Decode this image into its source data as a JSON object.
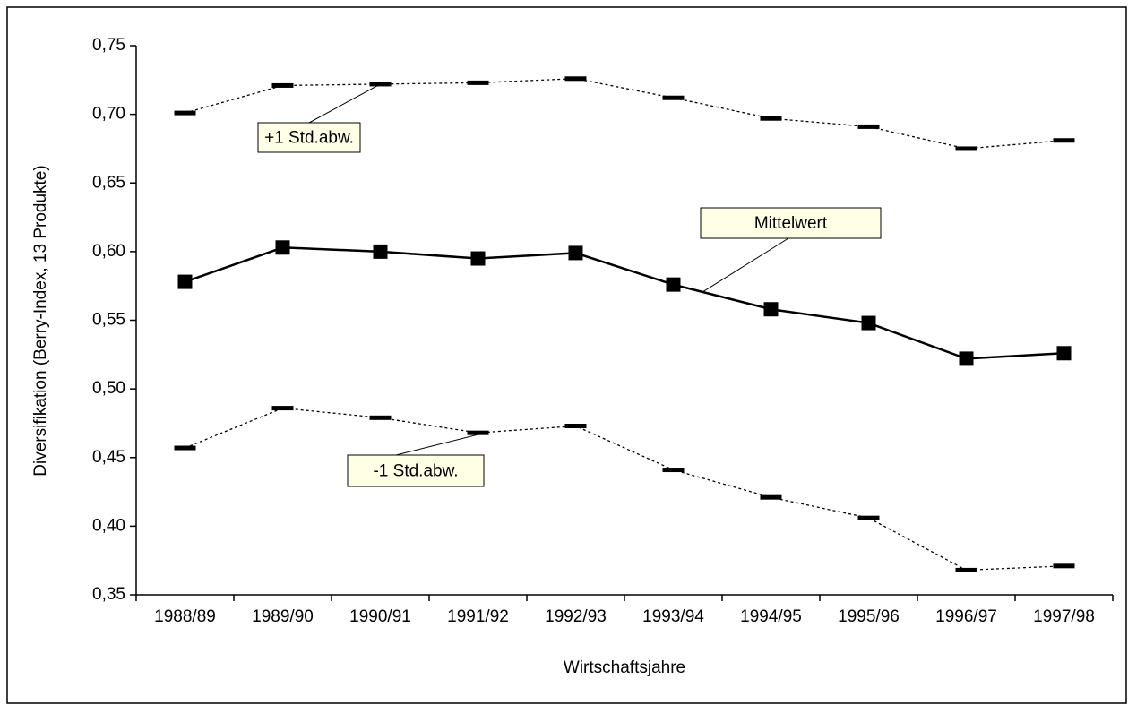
{
  "chart_data": {
    "type": "line",
    "x_label": "Wirtschaftsjahre",
    "y_label": "Diversifikation (Berry-Index, 13 Produkte)",
    "categories": [
      "1988/89",
      "1989/90",
      "1990/91",
      "1991/92",
      "1992/93",
      "1993/94",
      "1994/95",
      "1995/96",
      "1996/97",
      "1997/98"
    ],
    "series": [
      {
        "name": "+1 Std.abw.",
        "color": "#000000",
        "line": "dotted",
        "marker": "dash",
        "values": [
          0.701,
          0.721,
          0.722,
          0.723,
          0.726,
          0.712,
          0.697,
          0.691,
          0.675,
          0.681
        ]
      },
      {
        "name": "Mittelwert",
        "color": "#000000",
        "line": "solid",
        "marker": "square",
        "values": [
          0.578,
          0.603,
          0.6,
          0.595,
          0.599,
          0.576,
          0.558,
          0.548,
          0.522,
          0.526
        ]
      },
      {
        "name": "-1 Std.abw.",
        "color": "#000000",
        "line": "dotted",
        "marker": "dash",
        "values": [
          0.457,
          0.486,
          0.479,
          0.468,
          0.473,
          0.441,
          0.421,
          0.406,
          0.368,
          0.371
        ]
      }
    ],
    "ylim": [
      0.35,
      0.75
    ],
    "yticks": [
      {
        "value": 0.35,
        "label": "0,35"
      },
      {
        "value": 0.4,
        "label": "0,40"
      },
      {
        "value": 0.45,
        "label": "0,45"
      },
      {
        "value": 0.5,
        "label": "0,50"
      },
      {
        "value": 0.55,
        "label": "0,55"
      },
      {
        "value": 0.6,
        "label": "0,60"
      },
      {
        "value": 0.65,
        "label": "0,65"
      },
      {
        "value": 0.7,
        "label": "0,70"
      },
      {
        "value": 0.75,
        "label": "0,75"
      }
    ],
    "grid": false
  }
}
